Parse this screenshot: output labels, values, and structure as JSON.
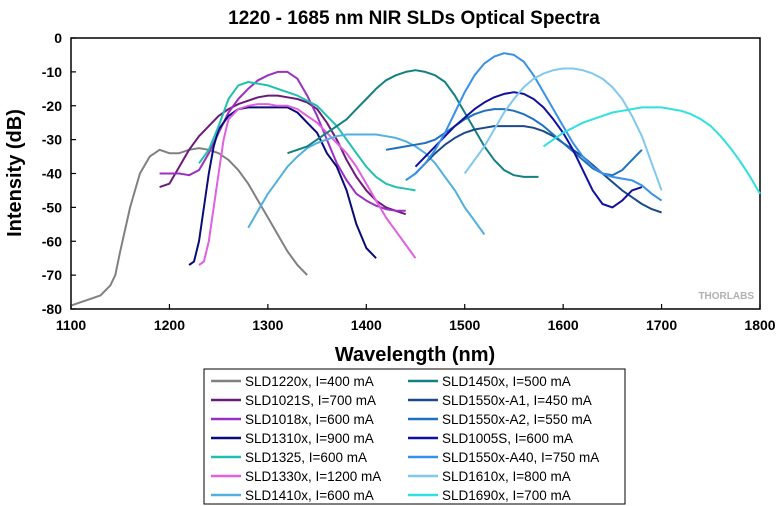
{
  "chart_data": {
    "type": "line",
    "title": "1220 - 1685 nm NIR SLDs Optical Spectra",
    "xlabel": "Wavelength (nm)",
    "ylabel": "Intensity (dB)",
    "xlim": [
      1100,
      1800
    ],
    "ylim": [
      -80,
      0
    ],
    "xticks": [
      1100,
      1200,
      1300,
      1400,
      1500,
      1600,
      1700,
      1800
    ],
    "yticks": [
      -80,
      -70,
      -60,
      -50,
      -40,
      -30,
      -20,
      -10,
      0
    ],
    "grid": false,
    "legend_position": "bottom",
    "watermark": "THORLABS",
    "series": [
      {
        "name": "SLD1220x, I=400 mA",
        "color": "#808080",
        "x": [
          1100,
          1110,
          1120,
          1130,
          1140,
          1145,
          1150,
          1160,
          1170,
          1180,
          1190,
          1200,
          1210,
          1220,
          1230,
          1240,
          1250,
          1260,
          1270,
          1280,
          1290,
          1300,
          1310,
          1320,
          1330,
          1340
        ],
        "y": [
          -79,
          -78,
          -77,
          -76,
          -73,
          -70,
          -63,
          -50,
          -40,
          -35,
          -33,
          -34,
          -34,
          -33,
          -32.5,
          -33,
          -34,
          -36,
          -39,
          -43,
          -48,
          -53,
          -58,
          -63,
          -67,
          -70
        ]
      },
      {
        "name": "SLD1021S, I=700 mA",
        "color": "#6a1b7a",
        "x": [
          1190,
          1200,
          1210,
          1220,
          1230,
          1240,
          1250,
          1260,
          1270,
          1280,
          1290,
          1300,
          1310,
          1320,
          1330,
          1340,
          1350,
          1360,
          1370,
          1380,
          1390,
          1400,
          1410,
          1420,
          1430,
          1440
        ],
        "y": [
          -44,
          -43,
          -38,
          -33,
          -29,
          -26,
          -23,
          -21,
          -19.5,
          -18.5,
          -17.5,
          -17,
          -17,
          -17.5,
          -18,
          -19,
          -21,
          -25,
          -30,
          -36,
          -41,
          -45,
          -48,
          -50,
          -51,
          -52
        ]
      },
      {
        "name": "SLD1018x, I=600 mA",
        "color": "#9b30c0",
        "x": [
          1190,
          1200,
          1210,
          1220,
          1230,
          1240,
          1250,
          1260,
          1270,
          1280,
          1290,
          1300,
          1310,
          1320,
          1330,
          1340,
          1350,
          1360,
          1370,
          1380,
          1390,
          1400,
          1410,
          1420,
          1430,
          1440
        ],
        "y": [
          -40,
          -40,
          -40,
          -40.5,
          -39,
          -34,
          -28,
          -22,
          -18,
          -15,
          -12.5,
          -11,
          -10,
          -10,
          -12,
          -17,
          -23,
          -30,
          -37,
          -42,
          -46,
          -48,
          -49.5,
          -50.5,
          -51,
          -51
        ]
      },
      {
        "name": "SLD1310x, I=900 mA",
        "color": "#0a0a7a",
        "x": [
          1220,
          1225,
          1230,
          1235,
          1240,
          1245,
          1250,
          1260,
          1270,
          1280,
          1290,
          1300,
          1310,
          1320,
          1330,
          1340,
          1350,
          1360,
          1370,
          1380,
          1390,
          1400,
          1410
        ],
        "y": [
          -67,
          -66,
          -60,
          -50,
          -40,
          -32,
          -27,
          -23,
          -21,
          -20.5,
          -20.5,
          -20.5,
          -20.5,
          -20.5,
          -22,
          -25,
          -28,
          -34,
          -38,
          -45,
          -55,
          -62,
          -65
        ]
      },
      {
        "name": "SLD1325, I=600 mA",
        "color": "#20c0b0",
        "x": [
          1230,
          1240,
          1250,
          1260,
          1270,
          1280,
          1290,
          1300,
          1310,
          1320,
          1330,
          1340,
          1350,
          1360,
          1370,
          1380,
          1390,
          1400,
          1410,
          1420,
          1430,
          1440,
          1450
        ],
        "y": [
          -37,
          -33,
          -26,
          -18,
          -14,
          -13,
          -13.5,
          -14,
          -15,
          -16,
          -17,
          -18.5,
          -20,
          -23,
          -26,
          -30,
          -34,
          -38,
          -41,
          -43,
          -44,
          -44.5,
          -45
        ]
      },
      {
        "name": "SLD1330x, I=1200 mA",
        "color": "#e060e0",
        "x": [
          1230,
          1235,
          1240,
          1245,
          1250,
          1255,
          1260,
          1270,
          1280,
          1290,
          1300,
          1310,
          1320,
          1330,
          1340,
          1350,
          1360,
          1370,
          1380,
          1390,
          1400,
          1410,
          1420,
          1430,
          1440,
          1450
        ],
        "y": [
          -67,
          -66,
          -60,
          -50,
          -40,
          -30,
          -24,
          -21,
          -20,
          -19.5,
          -19.5,
          -20,
          -20,
          -21,
          -23,
          -25,
          -28,
          -31,
          -34,
          -38,
          -43,
          -48,
          -53,
          -57,
          -61,
          -65
        ]
      },
      {
        "name": "SLD1410x, I=600 mA",
        "color": "#50b0e0",
        "x": [
          1280,
          1290,
          1300,
          1310,
          1320,
          1330,
          1340,
          1350,
          1360,
          1370,
          1380,
          1390,
          1400,
          1410,
          1420,
          1430,
          1440,
          1450,
          1460,
          1470,
          1480,
          1490,
          1500,
          1510,
          1520
        ],
        "y": [
          -56,
          -51,
          -46,
          -42,
          -38,
          -35,
          -32.5,
          -31,
          -30,
          -29,
          -28.5,
          -28.5,
          -28.5,
          -28.5,
          -29,
          -29.5,
          -30.5,
          -32,
          -34,
          -37,
          -41,
          -45,
          -50,
          -54,
          -58
        ]
      },
      {
        "name": "SLD1450x, I=500 mA",
        "color": "#148080",
        "x": [
          1320,
          1330,
          1340,
          1350,
          1360,
          1370,
          1380,
          1390,
          1400,
          1410,
          1420,
          1430,
          1440,
          1450,
          1460,
          1470,
          1480,
          1490,
          1500,
          1510,
          1520,
          1530,
          1540,
          1550,
          1560,
          1575
        ],
        "y": [
          -34,
          -33,
          -32,
          -30,
          -28,
          -26,
          -24,
          -21,
          -18,
          -15,
          -12.5,
          -11,
          -10,
          -9.5,
          -10,
          -11,
          -13,
          -17,
          -22,
          -27,
          -32,
          -36,
          -39,
          -40.5,
          -41,
          -41
        ]
      },
      {
        "name": "SLD1550x-A1, I=450 mA",
        "color": "#1a4a8a",
        "x": [
          1450,
          1460,
          1470,
          1480,
          1490,
          1500,
          1510,
          1520,
          1530,
          1540,
          1550,
          1560,
          1570,
          1580,
          1590,
          1600,
          1610,
          1620,
          1630,
          1640,
          1650,
          1660,
          1670,
          1680,
          1690,
          1700
        ],
        "y": [
          -40,
          -37,
          -34,
          -31.5,
          -29.5,
          -28,
          -27,
          -26.5,
          -26,
          -26,
          -26,
          -26,
          -26.5,
          -27.5,
          -29,
          -31,
          -33,
          -35,
          -37.5,
          -40,
          -42.5,
          -45,
          -47,
          -49,
          -50.5,
          -51.5
        ]
      },
      {
        "name": "SLD1550x-A2, I=550 mA",
        "color": "#2070c0",
        "x": [
          1420,
          1430,
          1440,
          1450,
          1460,
          1470,
          1480,
          1490,
          1500,
          1510,
          1520,
          1530,
          1540,
          1550,
          1560,
          1570,
          1580,
          1590,
          1600,
          1610,
          1620,
          1630,
          1640,
          1650,
          1660,
          1670,
          1680
        ],
        "y": [
          -33,
          -32.5,
          -32,
          -31.5,
          -31,
          -30,
          -28,
          -26,
          -24,
          -22.5,
          -21.5,
          -21,
          -21,
          -21.5,
          -22.5,
          -24,
          -26,
          -28.5,
          -31,
          -33.5,
          -36,
          -38.5,
          -40,
          -40.5,
          -39,
          -36,
          -33
        ]
      },
      {
        "name": "SLD1005S, I=600 mA",
        "color": "#1010a0",
        "x": [
          1450,
          1460,
          1470,
          1480,
          1490,
          1500,
          1510,
          1520,
          1530,
          1540,
          1550,
          1560,
          1570,
          1580,
          1590,
          1600,
          1610,
          1620,
          1630,
          1640,
          1650,
          1660,
          1670,
          1680
        ],
        "y": [
          -38,
          -35,
          -32,
          -29,
          -26,
          -23.5,
          -21,
          -19,
          -17.5,
          -16.5,
          -16,
          -16.5,
          -18,
          -20.5,
          -24,
          -28,
          -33,
          -39,
          -45,
          -49,
          -50,
          -48,
          -45,
          -44
        ]
      },
      {
        "name": "SLD1550x-A40, I=750 mA",
        "color": "#3890e8",
        "x": [
          1440,
          1450,
          1460,
          1470,
          1480,
          1490,
          1500,
          1510,
          1520,
          1530,
          1540,
          1550,
          1560,
          1570,
          1580,
          1590,
          1600,
          1610,
          1620,
          1630,
          1640,
          1650,
          1660,
          1670,
          1680,
          1690,
          1700
        ],
        "y": [
          -42,
          -40,
          -37,
          -33,
          -28,
          -22,
          -16,
          -11,
          -7.5,
          -5.5,
          -4.5,
          -5,
          -7,
          -11,
          -16,
          -21,
          -26,
          -31,
          -35,
          -38,
          -40,
          -41,
          -41.5,
          -42,
          -43.5,
          -46,
          -48
        ]
      },
      {
        "name": "SLD1610x, I=800 mA",
        "color": "#80c8ee",
        "x": [
          1500,
          1510,
          1520,
          1530,
          1540,
          1550,
          1560,
          1570,
          1580,
          1590,
          1600,
          1610,
          1620,
          1630,
          1640,
          1650,
          1660,
          1670,
          1680,
          1690,
          1700
        ],
        "y": [
          -40,
          -36,
          -32,
          -27,
          -22,
          -18,
          -14.5,
          -12,
          -10.5,
          -9.5,
          -9,
          -9,
          -9.5,
          -10.5,
          -12,
          -14.5,
          -18,
          -23,
          -29,
          -37,
          -45
        ]
      },
      {
        "name": "SLD1690x, I=700 mA",
        "color": "#30e0e0",
        "x": [
          1580,
          1590,
          1600,
          1610,
          1620,
          1630,
          1640,
          1650,
          1660,
          1670,
          1680,
          1690,
          1700,
          1710,
          1720,
          1730,
          1740,
          1750,
          1760,
          1770,
          1780,
          1790,
          1800
        ],
        "y": [
          -32,
          -30,
          -28,
          -26.5,
          -25,
          -24,
          -23,
          -22,
          -21.5,
          -21,
          -20.5,
          -20.5,
          -20.5,
          -21,
          -21.5,
          -22.5,
          -24,
          -26,
          -29,
          -32.5,
          -36.5,
          -41,
          -46
        ]
      }
    ]
  }
}
